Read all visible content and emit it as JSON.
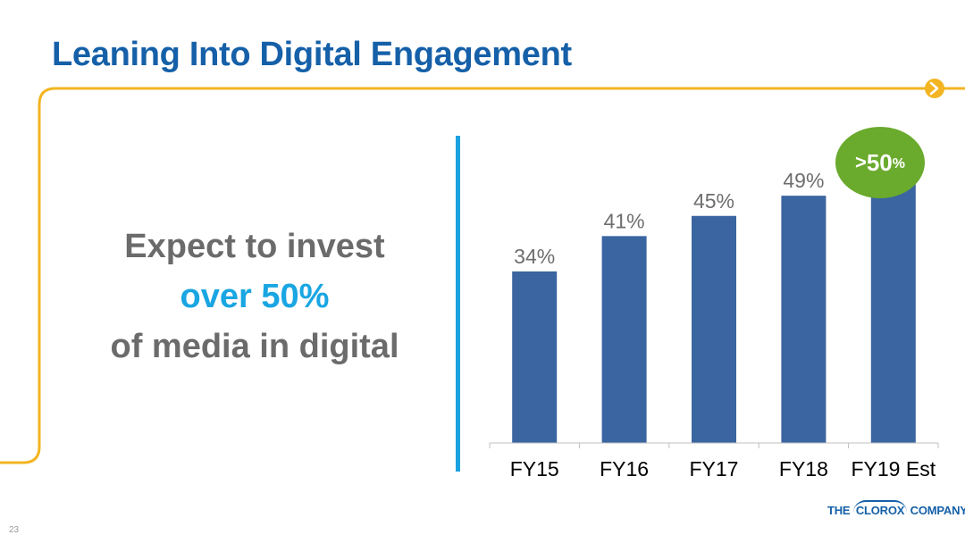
{
  "slide": {
    "title": "Leaning Into Digital Engagement",
    "page_number": "23",
    "accent_color": "#f2b521",
    "title_color": "#1560a8",
    "arrow_icon": "chevron-right-icon"
  },
  "callout": {
    "line1": "Expect to invest",
    "line2": "over 50%",
    "line3": "of media in digital"
  },
  "badge": {
    "prefix": ">",
    "value": "50",
    "suffix": "%",
    "color": "#6aaa2c"
  },
  "logo": {
    "the": "THE",
    "clorox": "CLOROX",
    "company": "COMPANY"
  },
  "chart_data": {
    "type": "bar",
    "categories": [
      "FY15",
      "FY16",
      "FY17",
      "FY18",
      "FY19 Est"
    ],
    "values": [
      34,
      41,
      45,
      49,
      52
    ],
    "data_labels": [
      "34%",
      "41%",
      "45%",
      "49%",
      ""
    ],
    "title": "",
    "xlabel": "",
    "ylabel": "",
    "ylim": [
      0,
      60
    ],
    "bar_color": "#3a65a0",
    "grid": false,
    "legend": "none"
  }
}
